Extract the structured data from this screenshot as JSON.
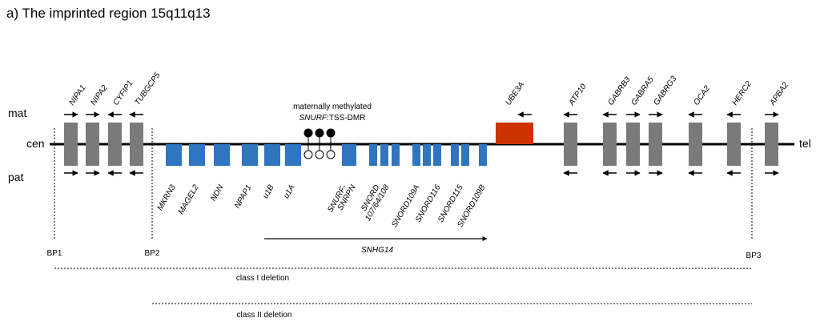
{
  "title": "a) The imprinted region 15q11q13",
  "labels": {
    "mat": "mat",
    "pat": "pat",
    "cen": "cen",
    "tel": "tel"
  },
  "colors": {
    "gray_gene": "#7a7a7a",
    "blue_gene": "#2f75c0",
    "ube3a": "#cc3300",
    "chromosome": "#000000"
  },
  "methylation": {
    "line1": "maternally methylated",
    "line2_italic": "SNURF",
    "line2_rest": ":TSS-DMR"
  },
  "genes_top": [
    "NIPA1",
    "NIPA2",
    "CYFIP1",
    "TUBGCP5",
    "UBE3A",
    "ATP10",
    "GABRB3",
    "GABRA5",
    "GABRG3",
    "OCA2",
    "HERC2",
    "APBA2"
  ],
  "genes_bottom": [
    "MKRN3",
    "MAGEL2",
    "NDN",
    "NPAP1",
    "u1B",
    "u1A",
    "SNURF-",
    "SNRPN",
    "SNORD",
    "107/64/108",
    "SNORD109A",
    "SNORD116",
    "SNORD115",
    "SNORD109B"
  ],
  "snhg14": "SNHG14",
  "breakpoints": [
    "BP1",
    "BP2",
    "BP3"
  ],
  "deletions": {
    "class1": "class I deletion",
    "class2": "class II deletion"
  }
}
